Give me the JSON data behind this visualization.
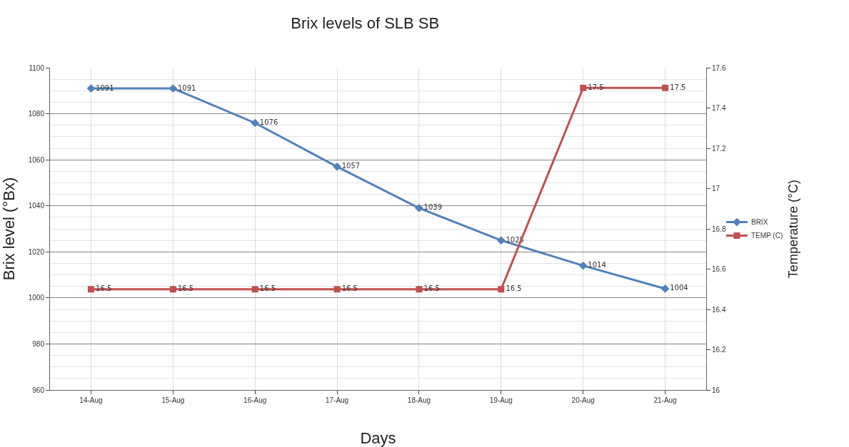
{
  "chart_data": {
    "type": "line",
    "title": "Brix levels of SLB SB",
    "xlabel": "Days",
    "ylabel": "Brix level (°Bx)",
    "y2label": "Temperature (°C)",
    "categories": [
      "14-Aug",
      "15-Aug",
      "16-Aug",
      "17-Aug",
      "18-Aug",
      "19-Aug",
      "20-Aug",
      "21-Aug"
    ],
    "series": [
      {
        "name": "BRIX",
        "color": "#4f81bd",
        "marker": "diamond",
        "values": [
          1091,
          1091,
          1076,
          1057,
          1039,
          1025,
          1014,
          1004
        ]
      },
      {
        "name": "TEMP (C)",
        "color": "#c0504d",
        "marker": "square",
        "axis": "y2",
        "values": [
          16.5,
          16.5,
          16.5,
          16.5,
          16.5,
          16.5,
          17.5,
          17.5
        ]
      }
    ],
    "ylim": [
      960,
      1100
    ],
    "yticks": [
      960,
      980,
      1000,
      1020,
      1040,
      1060,
      1080,
      1100
    ],
    "y2lim": [
      16,
      17.6
    ],
    "y2ticks": [
      16,
      16.2,
      16.4,
      16.6,
      16.8,
      17,
      17.2,
      17.4,
      17.6
    ],
    "grid": true,
    "legend": "right",
    "data_labels": true,
    "line_style": "solid"
  }
}
